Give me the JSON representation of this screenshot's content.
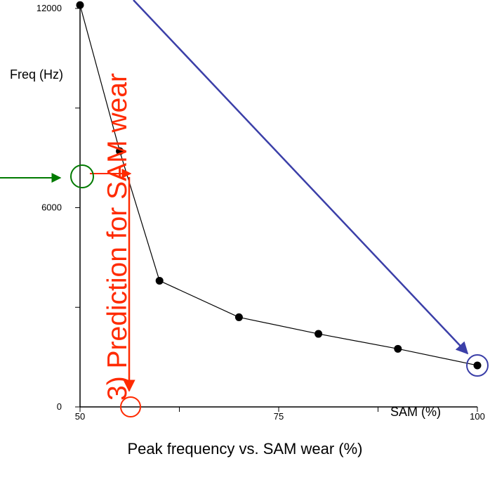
{
  "chart_data": {
    "type": "line",
    "caption": "Peak frequency vs. SAM wear (%)",
    "ylabel": "Freq (Hz)",
    "xlabel": "SAM (%)",
    "xlim": [
      50,
      100
    ],
    "ylim": [
      0,
      12000
    ],
    "x_ticks": [
      50,
      75,
      100
    ],
    "y_ticks": [
      0,
      6000,
      12000
    ],
    "series": [
      {
        "color": "#000000",
        "points": [
          {
            "x": 50,
            "y": 12100
          },
          {
            "x": 55,
            "y": 7700
          },
          {
            "x": 60,
            "y": 3800
          },
          {
            "x": 70,
            "y": 2700
          },
          {
            "x": 80,
            "y": 2200
          },
          {
            "x": 90,
            "y": 1750
          },
          {
            "x": 100,
            "y": 1250
          }
        ]
      }
    ],
    "annotations": {
      "prediction_text": "3) Prediction for SAM wear",
      "prediction_color": "#ff2a00",
      "input_arrow_color": "#007a00",
      "trend_arrow_color": "#3b3fa8",
      "highlight_point": {
        "x": 100,
        "y": 1250
      },
      "input_point": {
        "x": 50,
        "y": 6800
      },
      "prediction_point": {
        "x": 56,
        "y": 0
      }
    }
  }
}
